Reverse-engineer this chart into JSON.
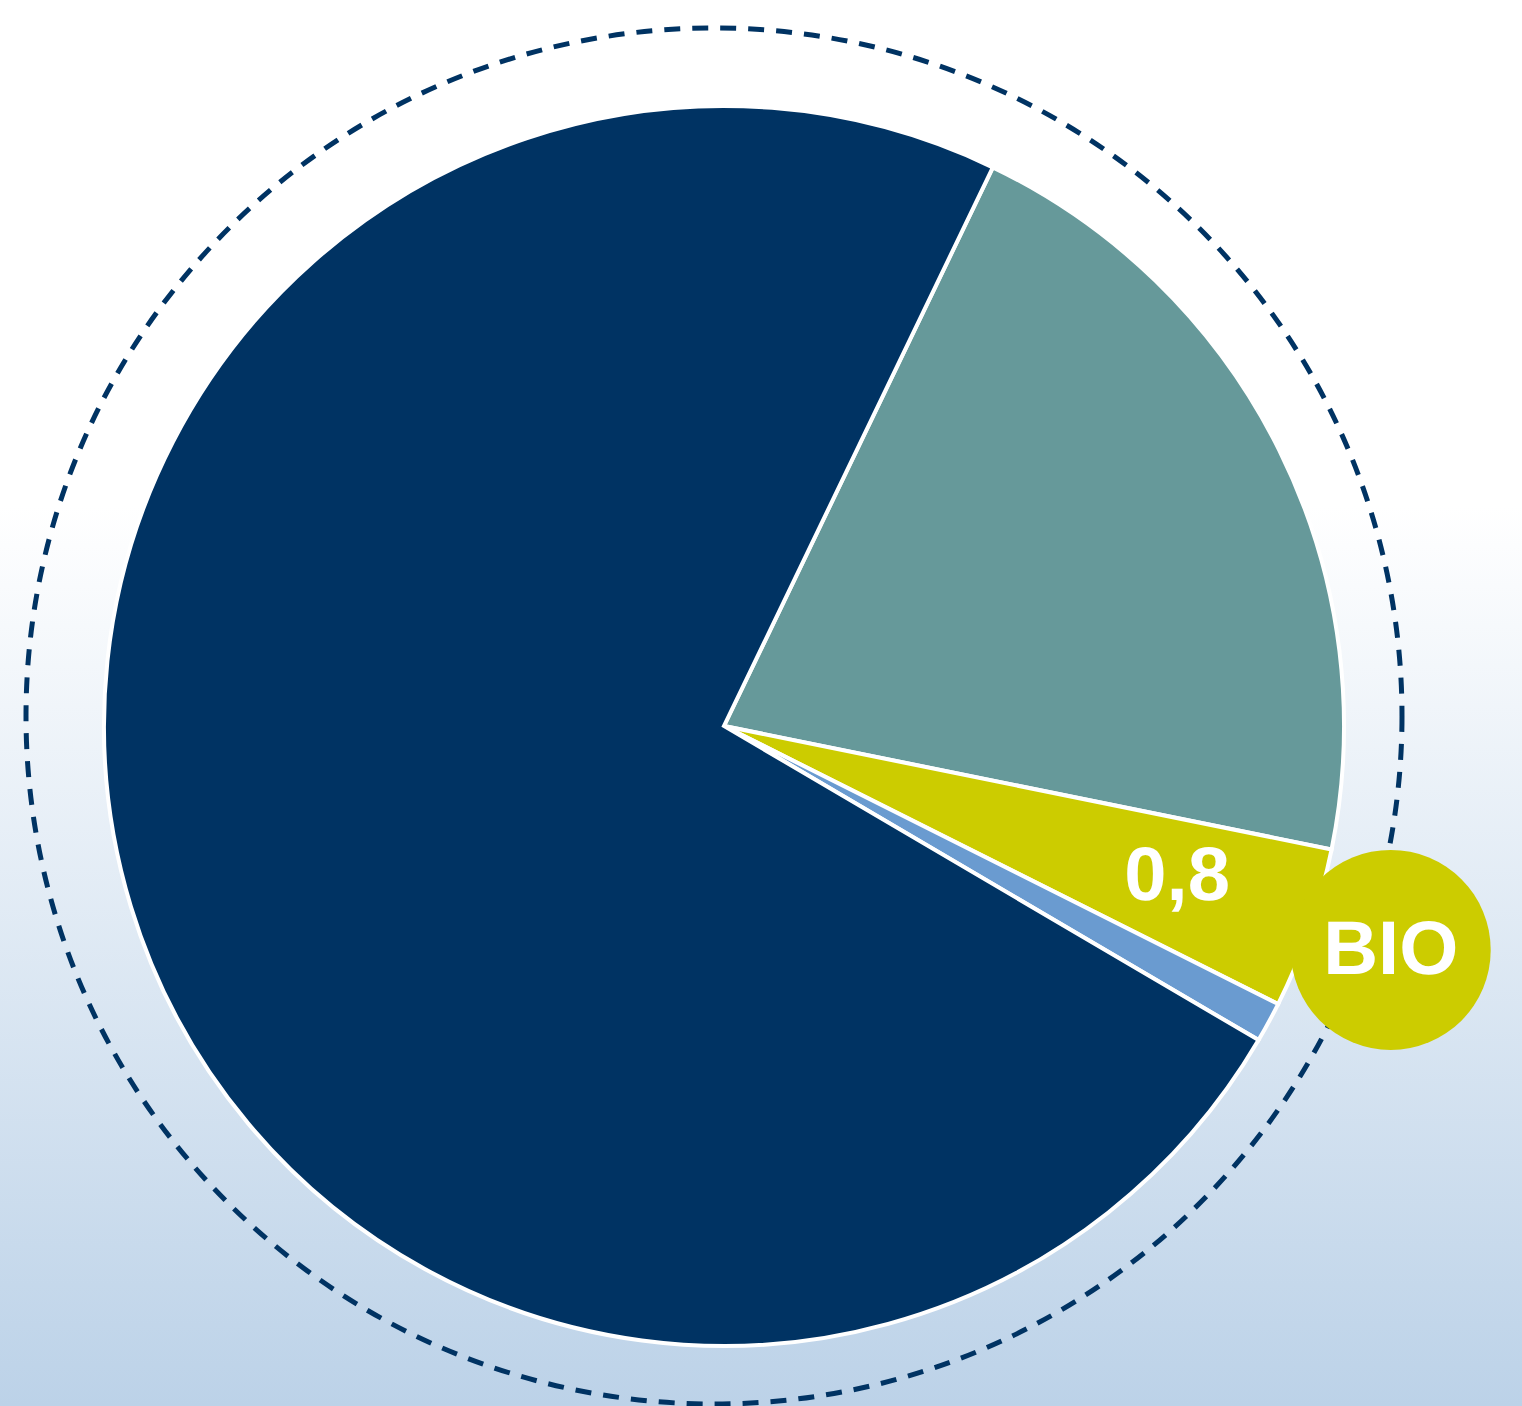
{
  "chart_data": {
    "type": "pie",
    "categories": [
      null,
      "BIO",
      null,
      null
    ],
    "values": [
      4.0,
      0.8,
      0.2,
      14.0
    ],
    "colors": [
      "#66999a",
      "#cccc00",
      "#6a9bd0",
      "#003363"
    ],
    "value_labels": [
      null,
      "0,8",
      null,
      null
    ]
  }
}
